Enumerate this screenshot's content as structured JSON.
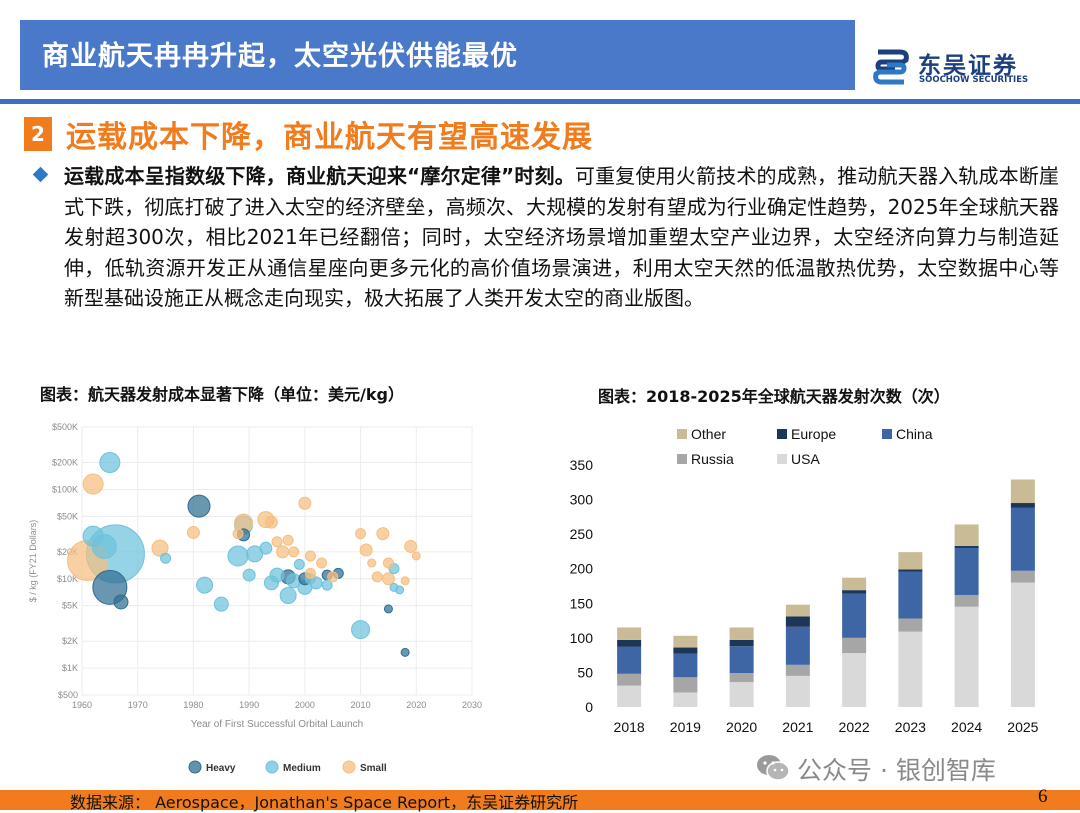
{
  "header": {
    "title": "商业航天冉冉升起，太空光伏供能最优",
    "logo_cn": "东吴证券",
    "logo_en": "SOOCHOW SECURITIES"
  },
  "section": {
    "number": "2",
    "title": "运载成本下降，商业航天有望高速发展"
  },
  "body": {
    "lead": "运载成本呈指数级下降，商业航天迎来“摩尔定律”时刻。",
    "text": "可重复使用火箭技术的成熟，推动航天器入轨成本断崖式下跌，彻底打破了进入太空的经济壁垒，高频次、大规模的发射有望成为行业确定性趋势，2025年全球航天器发射超300次，相比2021年已经翻倍；同时，太空经济场景增加重塑太空产业边界，太空经济向算力与制造延伸，低轨资源开发正从通信星座向更多元化的高价值场景演进，利用太空天然的低温散热优势，太空数据中心等新型基础设施正从概念走向现实，极大拓展了人类开发太空的商业版图。"
  },
  "colors": {
    "header_blue": "#4a79c9",
    "accent_orange": "#f07c1e",
    "heavy": "#2f6d91",
    "medium": "#6ec2dc",
    "small": "#f6be80",
    "usa": "#d9d9d9",
    "russia": "#a6a6a6",
    "china": "#3e66a4",
    "europe": "#1d3557",
    "other": "#c8bb96"
  },
  "chart_data": [
    {
      "type": "scatter",
      "title": "图表：航天器发射成本显著下降（单位：美元/kg）",
      "xlabel": "Year of First Successful Orbital Launch",
      "ylabel": "$ / kg (FY21 Dollars)",
      "xlim": [
        1960,
        2030
      ],
      "xticks": [
        "1960",
        "1970",
        "1980",
        "1990",
        "2000",
        "2010",
        "2020",
        "2030"
      ],
      "yscale": "log",
      "ylim": [
        500,
        500000
      ],
      "yticks": [
        {
          "value": 500,
          "label": "$500"
        },
        {
          "value": 1000,
          "label": "$1K"
        },
        {
          "value": 2000,
          "label": "$2K"
        },
        {
          "value": 5000,
          "label": "$5K"
        },
        {
          "value": 10000,
          "label": "$10K"
        },
        {
          "value": 20000,
          "label": "$20K"
        },
        {
          "value": 50000,
          "label": "$50K"
        },
        {
          "value": 100000,
          "label": "$100K"
        },
        {
          "value": 200000,
          "label": "$200K"
        },
        {
          "value": 500000,
          "label": "$500K"
        }
      ],
      "legend": [
        "Heavy",
        "Medium",
        "Small"
      ],
      "series": [
        {
          "name": "Heavy",
          "points": [
            {
              "x": 1965,
              "y": 8000,
              "s": 17
            },
            {
              "x": 1967,
              "y": 5500,
              "s": 7
            },
            {
              "x": 1981,
              "y": 65000,
              "s": 11
            },
            {
              "x": 1989,
              "y": 31000,
              "s": 6
            },
            {
              "x": 1997,
              "y": 10500,
              "s": 7
            },
            {
              "x": 2000,
              "y": 10000,
              "s": 6
            },
            {
              "x": 2004,
              "y": 11000,
              "s": 5
            },
            {
              "x": 2006,
              "y": 11500,
              "s": 5
            },
            {
              "x": 2015,
              "y": 4600,
              "s": 4
            },
            {
              "x": 2018,
              "y": 1500,
              "s": 4
            }
          ]
        },
        {
          "name": "Medium",
          "points": [
            {
              "x": 1962,
              "y": 30000,
              "s": 10
            },
            {
              "x": 1964,
              "y": 23000,
              "s": 12
            },
            {
              "x": 1965,
              "y": 200000,
              "s": 10
            },
            {
              "x": 1966,
              "y": 19000,
              "s": 29
            },
            {
              "x": 1975,
              "y": 17000,
              "s": 5
            },
            {
              "x": 1982,
              "y": 8500,
              "s": 8
            },
            {
              "x": 1985,
              "y": 5200,
              "s": 7
            },
            {
              "x": 1988,
              "y": 18000,
              "s": 10
            },
            {
              "x": 1989,
              "y": 40000,
              "s": 9
            },
            {
              "x": 1990,
              "y": 11000,
              "s": 6
            },
            {
              "x": 1991,
              "y": 19000,
              "s": 8
            },
            {
              "x": 1993,
              "y": 22000,
              "s": 6
            },
            {
              "x": 1994,
              "y": 9000,
              "s": 7
            },
            {
              "x": 1995,
              "y": 11000,
              "s": 7
            },
            {
              "x": 1997,
              "y": 6500,
              "s": 8
            },
            {
              "x": 1998,
              "y": 9500,
              "s": 7
            },
            {
              "x": 1999,
              "y": 14500,
              "s": 5
            },
            {
              "x": 2000,
              "y": 8000,
              "s": 7
            },
            {
              "x": 2001,
              "y": 10000,
              "s": 5
            },
            {
              "x": 2002,
              "y": 9000,
              "s": 6
            },
            {
              "x": 2004,
              "y": 8500,
              "s": 5
            },
            {
              "x": 2010,
              "y": 2700,
              "s": 9
            },
            {
              "x": 2016,
              "y": 13000,
              "s": 5
            },
            {
              "x": 2016,
              "y": 8000,
              "s": 4
            },
            {
              "x": 2017,
              "y": 7500,
              "s": 4
            }
          ]
        },
        {
          "name": "Small",
          "points": [
            {
              "x": 1961,
              "y": 16000,
              "s": 20
            },
            {
              "x": 1962,
              "y": 115000,
              "s": 10
            },
            {
              "x": 1974,
              "y": 22000,
              "s": 8
            },
            {
              "x": 1980,
              "y": 33000,
              "s": 6
            },
            {
              "x": 1988,
              "y": 32000,
              "s": 5
            },
            {
              "x": 1989,
              "y": 42000,
              "s": 9
            },
            {
              "x": 1993,
              "y": 46000,
              "s": 8
            },
            {
              "x": 1994,
              "y": 43000,
              "s": 6
            },
            {
              "x": 1995,
              "y": 26000,
              "s": 5
            },
            {
              "x": 1996,
              "y": 20000,
              "s": 6
            },
            {
              "x": 1997,
              "y": 27000,
              "s": 5
            },
            {
              "x": 1998,
              "y": 20000,
              "s": 5
            },
            {
              "x": 2000,
              "y": 70000,
              "s": 6
            },
            {
              "x": 2001,
              "y": 18000,
              "s": 5
            },
            {
              "x": 2001,
              "y": 11500,
              "s": 5
            },
            {
              "x": 2003,
              "y": 15000,
              "s": 5
            },
            {
              "x": 2005,
              "y": 10500,
              "s": 5
            },
            {
              "x": 2010,
              "y": 32000,
              "s": 5
            },
            {
              "x": 2011,
              "y": 21000,
              "s": 6
            },
            {
              "x": 2012,
              "y": 15000,
              "s": 4
            },
            {
              "x": 2013,
              "y": 10500,
              "s": 5
            },
            {
              "x": 2014,
              "y": 32000,
              "s": 6
            },
            {
              "x": 2015,
              "y": 15000,
              "s": 5
            },
            {
              "x": 2015,
              "y": 10000,
              "s": 6
            },
            {
              "x": 2018,
              "y": 9500,
              "s": 4
            },
            {
              "x": 2019,
              "y": 23000,
              "s": 6
            },
            {
              "x": 2020,
              "y": 18000,
              "s": 4
            }
          ]
        }
      ]
    },
    {
      "type": "bar",
      "stacked": true,
      "title": "图表：2018-2025年全球航天器发射次数（次）",
      "categories": [
        "2018",
        "2019",
        "2020",
        "2021",
        "2022",
        "2023",
        "2024",
        "2025"
      ],
      "ylim": [
        0,
        350
      ],
      "yticks": [
        0,
        50,
        100,
        150,
        200,
        250,
        300,
        350
      ],
      "legend": [
        "Other",
        "Europe",
        "China",
        "Russia",
        "USA"
      ],
      "series": [
        {
          "name": "USA",
          "values": [
            31,
            21,
            36,
            45,
            78,
            109,
            145,
            180
          ]
        },
        {
          "name": "Russia",
          "values": [
            17,
            22,
            13,
            16,
            22,
            19,
            17,
            17
          ]
        },
        {
          "name": "China",
          "values": [
            39,
            34,
            39,
            55,
            64,
            68,
            68,
            91
          ]
        },
        {
          "name": "Europe",
          "values": [
            10,
            9,
            9,
            15,
            5,
            3,
            3,
            7
          ]
        },
        {
          "name": "Other",
          "values": [
            18,
            17,
            18,
            17,
            18,
            25,
            31,
            34
          ]
        }
      ]
    }
  ],
  "footer": {
    "source": "数据来源： Aerospace，Jonathan's Space Report，东吴证券研究所",
    "page_number": "6",
    "watermark": "公众号 · 银创智库"
  }
}
